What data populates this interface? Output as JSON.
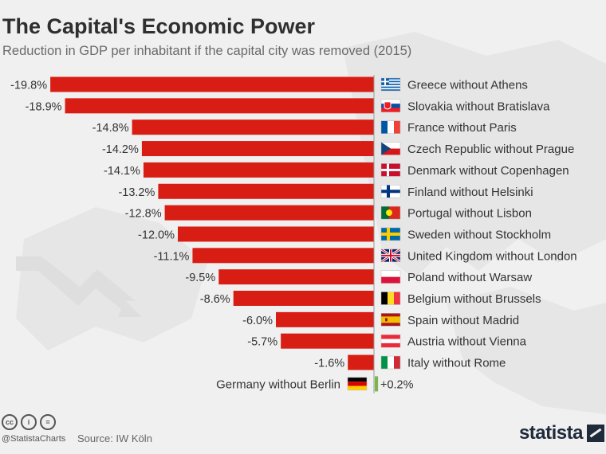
{
  "title": "The Capital's Economic Power",
  "subtitle": "Reduction in GDP per inhabitant if the capital city was removed (2015)",
  "footer": {
    "cc_icons": [
      "cc",
      "i",
      "="
    ],
    "handle": "@StatistaCharts",
    "source": "Source: IW Köln",
    "brand": "statista"
  },
  "colors": {
    "negative_bar": "#d81e14",
    "positive_bar": "#7ab648",
    "background": "#f0f0f0"
  },
  "chart_data": {
    "type": "bar",
    "orientation": "horizontal",
    "unit": "%",
    "categories": [
      "Greece without Athens",
      "Slovakia without Bratislava",
      "France without Paris",
      "Czech Republic without Prague",
      "Denmark without Copenhagen",
      "Finland without Helsinki",
      "Portugal without Lisbon",
      "Sweden without Stockholm",
      "United Kingdom without London",
      "Poland without Warsaw",
      "Belgium without Brussels",
      "Spain without Madrid",
      "Austria without Vienna",
      "Italy without Rome",
      "Germany without Berlin"
    ],
    "values": [
      -19.8,
      -18.9,
      -14.8,
      -14.2,
      -14.1,
      -13.2,
      -12.8,
      -12.0,
      -11.1,
      -9.5,
      -8.6,
      -6.0,
      -5.7,
      -1.6,
      0.2
    ],
    "value_labels": [
      "-19.8%",
      "-18.9%",
      "-14.8%",
      "-14.2%",
      "-14.1%",
      "-13.2%",
      "-12.8%",
      "-12.0%",
      "-11.1%",
      "-9.5%",
      "-8.6%",
      "-6.0%",
      "-5.7%",
      "-1.6%",
      "+0.2%"
    ],
    "flags": [
      "greece-flag-icon",
      "slovakia-flag-icon",
      "france-flag-icon",
      "czech-flag-icon",
      "denmark-flag-icon",
      "finland-flag-icon",
      "portugal-flag-icon",
      "sweden-flag-icon",
      "uk-flag-icon",
      "poland-flag-icon",
      "belgium-flag-icon",
      "spain-flag-icon",
      "austria-flag-icon",
      "italy-flag-icon",
      "germany-flag-icon"
    ],
    "xlim": [
      -20,
      0.2
    ],
    "grid": false,
    "legend": "none"
  }
}
